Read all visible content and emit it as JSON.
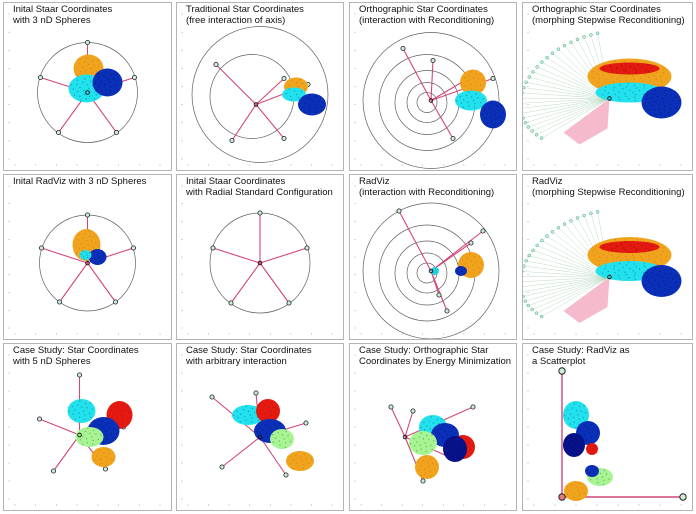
{
  "colors": {
    "axis": "#d2477a",
    "circle": "#606060",
    "anchor_fill": "#cdeed3",
    "anchor_stroke": "#222222",
    "cyan": "#22e1ef",
    "blue": "#0a2fb8",
    "darkblue": "#06128a",
    "orange": "#f0a41e",
    "red": "#e41a10",
    "green": "#a6f592",
    "fan": "#f3a3bc"
  },
  "panels": [
    {
      "title": "Inital Staar Coordinates\nwith 3 nD Spheres",
      "kind": "star5"
    },
    {
      "title": "Traditional Star Coordinates\n(free interaction of axis)",
      "kind": "trad"
    },
    {
      "title": "Orthographic  Star Coordinates\n(interaction with Reconditioning)",
      "kind": "ortho"
    },
    {
      "title": "Orthographic  Star Coordinates\n(morphing Stepwise Reconditioning)",
      "kind": "morph"
    },
    {
      "title": "Inital RadViz with 3 nD Spheres",
      "kind": "radviz"
    },
    {
      "title": "Inital Staar Coordinates\nwith Radial Standard Configuration",
      "kind": "radial"
    },
    {
      "title": "RadViz\n(interaction with Reconditioning)",
      "kind": "radviz2"
    },
    {
      "title": "RadViz\n(morphing Stepwise Reconditioning)",
      "kind": "morph2"
    },
    {
      "title": "Case Study: Star Coordinates\nwith 5 nD Spheres",
      "kind": "case1"
    },
    {
      "title": "Case Study: Star Coordinates\nwith arbitrary interaction",
      "kind": "case2"
    },
    {
      "title": "Case Study: Orthographic Star\nCoordinates by Energy Minimization",
      "kind": "case3"
    },
    {
      "title": "Case Study: RadViz as\na Scatterplot",
      "kind": "case4"
    }
  ]
}
